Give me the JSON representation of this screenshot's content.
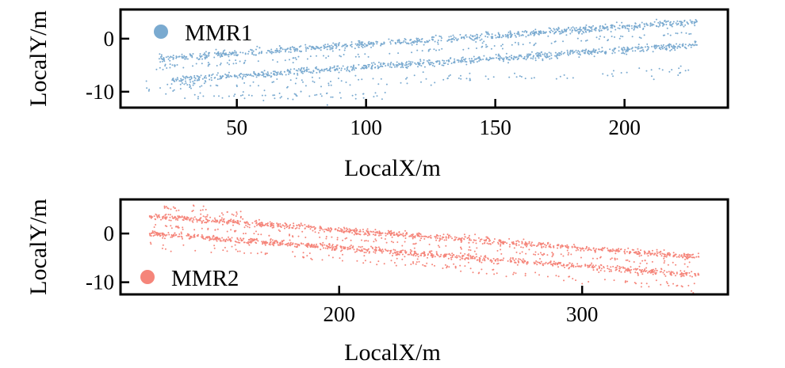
{
  "chart_data": [
    {
      "type": "scatter",
      "xlabel": "LocalX/m",
      "ylabel": "LocalY/m",
      "xlim": [
        5,
        240
      ],
      "ylim": [
        -13,
        5.5
      ],
      "xticks": [
        50,
        100,
        150,
        200
      ],
      "yticks": [
        0,
        -10
      ],
      "xtick_labels": [
        "50",
        "100",
        "150",
        "200"
      ],
      "ytick_labels": [
        "0",
        "-10"
      ],
      "legend": "top-left",
      "grid": false,
      "series": [
        {
          "name": "MMR1",
          "color": "#7aaad0",
          "bands": [
            {
              "x": [
                20,
                228
              ],
              "y": [
                -3.8,
                3.2
              ],
              "spread": 0.6,
              "density": 4
            },
            {
              "x": [
                25,
                228
              ],
              "y": [
                -7.8,
                -1.2
              ],
              "spread": 0.6,
              "density": 4
            },
            {
              "x": [
                18,
                228
              ],
              "y": [
                -5.5,
                1.0
              ],
              "spread": 0.5,
              "density": 0.6
            },
            {
              "x": [
                15,
                225
              ],
              "y": [
                -9.2,
                -6.2
              ],
              "spread": 1.0,
              "density": 0.6
            },
            {
              "x": [
                28,
                110
              ],
              "y": [
                -11.0,
                -10.5
              ],
              "spread": 0.9,
              "density": 0.7
            }
          ],
          "points_sample": [
            {
              "x": 20,
              "y": -3.8
            },
            {
              "x": 100,
              "y": -1.2
            },
            {
              "x": 228,
              "y": 3.2
            },
            {
              "x": 25,
              "y": -7.8
            },
            {
              "x": 125,
              "y": -4.5
            },
            {
              "x": 228,
              "y": -1.2
            },
            {
              "x": 15,
              "y": -8.0
            },
            {
              "x": 35,
              "y": -11.3
            },
            {
              "x": 85,
              "y": -12.5
            }
          ]
        }
      ]
    },
    {
      "type": "scatter",
      "xlabel": "LocalX/m",
      "ylabel": "LocalY/m",
      "xlim": [
        110,
        360
      ],
      "ylim": [
        -12.5,
        7
      ],
      "xticks": [
        200,
        300
      ],
      "yticks": [
        0,
        -10
      ],
      "xtick_labels": [
        "200",
        "300"
      ],
      "ytick_labels": [
        "0",
        "-10"
      ],
      "legend": "bottom-left",
      "grid": false,
      "series": [
        {
          "name": "MMR2",
          "color": "#f5857a",
          "bands": [
            {
              "x": [
                122,
                348
              ],
              "y": [
                3.6,
                -4.8
              ],
              "spread": 0.6,
              "density": 4
            },
            {
              "x": [
                122,
                348
              ],
              "y": [
                0.0,
                -8.5
              ],
              "spread": 0.6,
              "density": 4
            },
            {
              "x": [
                122,
                348
              ],
              "y": [
                1.8,
                -6.6
              ],
              "spread": 0.5,
              "density": 0.6
            },
            {
              "x": [
                122,
                348
              ],
              "y": [
                -2.2,
                -11.0
              ],
              "spread": 1.0,
              "density": 0.6
            },
            {
              "x": [
                128,
                160
              ],
              "y": [
                5.5,
                3.5
              ],
              "spread": 0.8,
              "density": 1.2
            }
          ],
          "points_sample": [
            {
              "x": 122,
              "y": 3.6
            },
            {
              "x": 235,
              "y": -0.6
            },
            {
              "x": 348,
              "y": -4.8
            },
            {
              "x": 122,
              "y": 0.0
            },
            {
              "x": 235,
              "y": -4.2
            },
            {
              "x": 348,
              "y": -8.5
            },
            {
              "x": 140,
              "y": 5.8
            },
            {
              "x": 300,
              "y": -10.3
            },
            {
              "x": 345,
              "y": -11.8
            }
          ]
        }
      ]
    }
  ]
}
